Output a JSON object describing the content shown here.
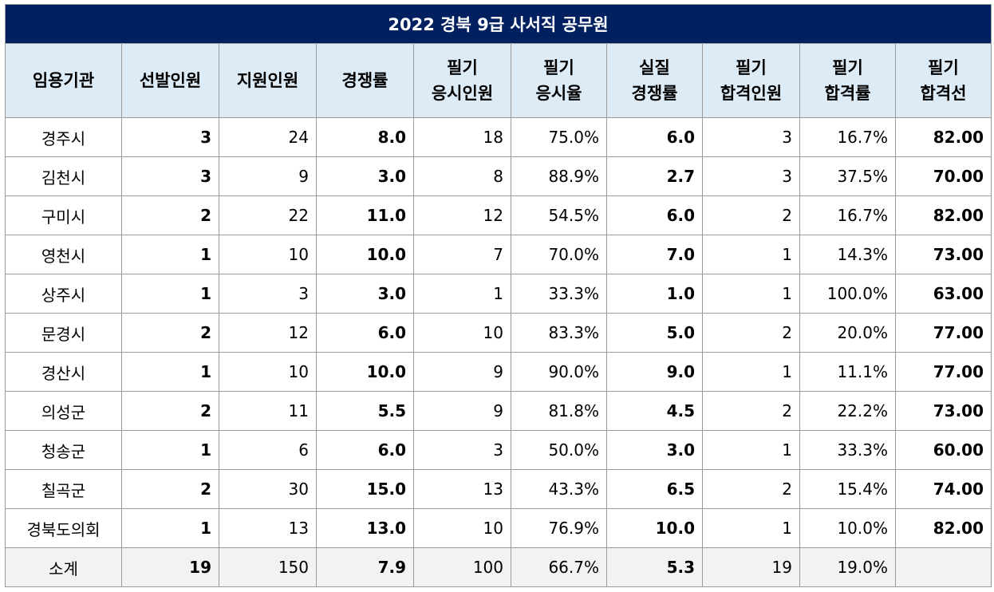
{
  "title": "2022 경북 9급 사서직  공무원",
  "headers": [
    {
      "l1": "임용기관",
      "l2": ""
    },
    {
      "l1": "선발인원",
      "l2": ""
    },
    {
      "l1": "지원인원",
      "l2": ""
    },
    {
      "l1": "경쟁률",
      "l2": ""
    },
    {
      "l1": "필기",
      "l2": "응시인원"
    },
    {
      "l1": "필기",
      "l2": "응시율"
    },
    {
      "l1": "실질",
      "l2": "경쟁률"
    },
    {
      "l1": "필기",
      "l2": "합격인원"
    },
    {
      "l1": "필기",
      "l2": "합격률"
    },
    {
      "l1": "필기",
      "l2": "합격선"
    }
  ],
  "rows": [
    [
      "경주시",
      "3",
      "24",
      "8.0",
      "18",
      "75.0%",
      "6.0",
      "3",
      "16.7%",
      "82.00"
    ],
    [
      "김천시",
      "3",
      "9",
      "3.0",
      "8",
      "88.9%",
      "2.7",
      "3",
      "37.5%",
      "70.00"
    ],
    [
      "구미시",
      "2",
      "22",
      "11.0",
      "12",
      "54.5%",
      "6.0",
      "2",
      "16.7%",
      "82.00"
    ],
    [
      "영천시",
      "1",
      "10",
      "10.0",
      "7",
      "70.0%",
      "7.0",
      "1",
      "14.3%",
      "73.00"
    ],
    [
      "상주시",
      "1",
      "3",
      "3.0",
      "1",
      "33.3%",
      "1.0",
      "1",
      "100.0%",
      "63.00"
    ],
    [
      "문경시",
      "2",
      "12",
      "6.0",
      "10",
      "83.3%",
      "5.0",
      "2",
      "20.0%",
      "77.00"
    ],
    [
      "경산시",
      "1",
      "10",
      "10.0",
      "9",
      "90.0%",
      "9.0",
      "1",
      "11.1%",
      "77.00"
    ],
    [
      "의성군",
      "2",
      "11",
      "5.5",
      "9",
      "81.8%",
      "4.5",
      "2",
      "22.2%",
      "73.00"
    ],
    [
      "청송군",
      "1",
      "6",
      "6.0",
      "3",
      "50.0%",
      "3.0",
      "1",
      "33.3%",
      "60.00"
    ],
    [
      "칠곡군",
      "2",
      "30",
      "15.0",
      "13",
      "43.3%",
      "6.5",
      "2",
      "15.4%",
      "74.00"
    ],
    [
      "경북도의회",
      "1",
      "13",
      "13.0",
      "10",
      "76.9%",
      "10.0",
      "1",
      "10.0%",
      "82.00"
    ]
  ],
  "total": [
    "소계",
    "19",
    "150",
    "7.9",
    "100",
    "66.7%",
    "5.3",
    "19",
    "19.0%",
    ""
  ]
}
